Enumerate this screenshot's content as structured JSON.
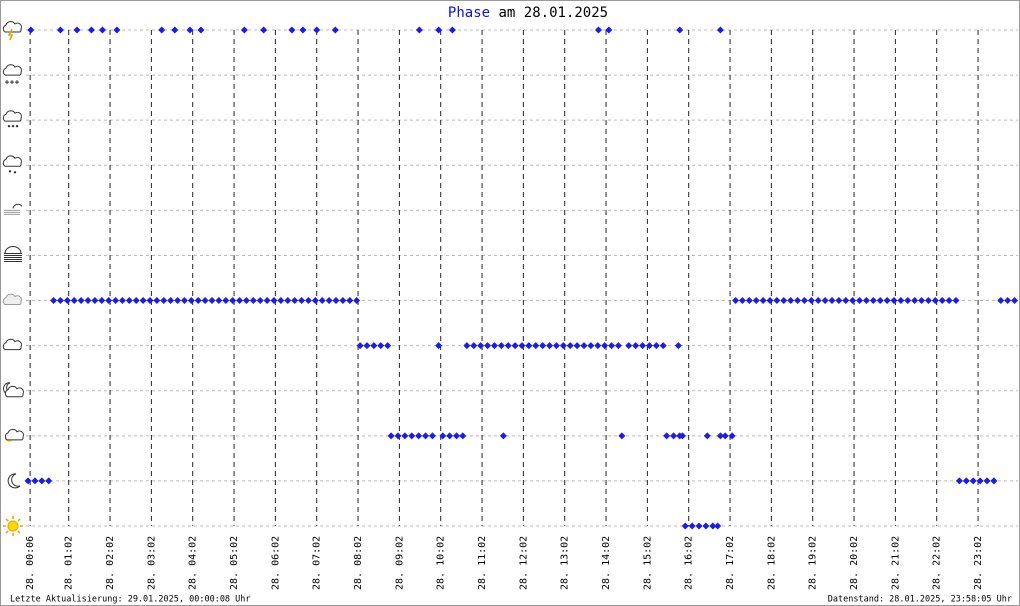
{
  "chart_data": {
    "type": "scatter",
    "title_highlight": "Phase",
    "title": "am 28.01.2025",
    "footer_left": "Letzte Aktualisierung: 29.01.2025, 00:00:08 Uhr",
    "footer_right": "Datenstand: 28.01.2025, 23:58:05 Uhr",
    "color": "#1c1ce8",
    "grid": true,
    "xlim": [
      0,
      1440
    ],
    "ylim": [
      0,
      11
    ],
    "yticks": [
      0,
      1,
      2,
      3,
      4,
      5,
      6,
      7,
      8,
      9,
      10,
      11
    ],
    "xticks": [
      {
        "value": 6,
        "label": "28. 00:06"
      },
      {
        "value": 62,
        "label": "28. 01:02"
      },
      {
        "value": 122,
        "label": "28. 02:02"
      },
      {
        "value": 182,
        "label": "28. 03:02"
      },
      {
        "value": 242,
        "label": "28. 04:02"
      },
      {
        "value": 302,
        "label": "28. 05:02"
      },
      {
        "value": 362,
        "label": "28. 06:02"
      },
      {
        "value": 422,
        "label": "28. 07:02"
      },
      {
        "value": 482,
        "label": "28. 08:02"
      },
      {
        "value": 542,
        "label": "28. 09:02"
      },
      {
        "value": 602,
        "label": "28. 10:02"
      },
      {
        "value": 662,
        "label": "28. 11:02"
      },
      {
        "value": 722,
        "label": "28. 12:02"
      },
      {
        "value": 782,
        "label": "28. 13:02"
      },
      {
        "value": 842,
        "label": "28. 14:02"
      },
      {
        "value": 902,
        "label": "28. 15:02"
      },
      {
        "value": 962,
        "label": "28. 16:02"
      },
      {
        "value": 1022,
        "label": "28. 17:02"
      },
      {
        "value": 1082,
        "label": "28. 18:02"
      },
      {
        "value": 1142,
        "label": "28. 19:02"
      },
      {
        "value": 1202,
        "label": "28. 20:02"
      },
      {
        "value": 1262,
        "label": "28. 21:02"
      },
      {
        "value": 1322,
        "label": "28. 22:02"
      },
      {
        "value": 1382,
        "label": "28. 23:02"
      }
    ],
    "x": [
      3,
      13,
      23,
      33,
      40,
      50,
      60,
      70,
      80,
      90,
      100,
      110,
      120,
      130,
      140,
      150,
      160,
      170,
      180,
      190,
      200,
      210,
      220,
      230,
      240,
      250,
      260,
      270,
      280,
      290,
      300,
      310,
      320,
      330,
      340,
      350,
      360,
      370,
      380,
      390,
      400,
      410,
      420,
      430,
      440,
      450,
      460,
      470,
      480,
      485,
      495,
      505,
      515,
      525,
      530,
      540,
      550,
      560,
      570,
      580,
      590,
      599,
      605,
      615,
      625,
      634,
      640,
      650,
      660,
      670,
      680,
      690,
      693,
      700,
      710,
      720,
      730,
      740,
      750,
      760,
      770,
      780,
      790,
      800,
      810,
      820,
      830,
      840,
      850,
      860,
      865,
      875,
      885,
      895,
      905,
      915,
      925,
      930,
      940,
      947,
      949,
      953,
      957,
      967,
      977,
      987,
      989,
      997,
      1004,
      1008,
      1015,
      1025,
      1030,
      1040,
      1050,
      1060,
      1070,
      1080,
      1090,
      1100,
      1110,
      1120,
      1130,
      1140,
      1150,
      1160,
      1170,
      1180,
      1190,
      1200,
      1210,
      1220,
      1230,
      1240,
      1250,
      1260,
      1270,
      1280,
      1290,
      1300,
      1310,
      1320,
      1330,
      1340,
      1350,
      1355,
      1365,
      1375,
      1385,
      1395,
      1405,
      1415,
      1425,
      1435,
      7,
      50,
      74,
      95,
      111,
      132,
      197,
      216,
      238,
      254,
      317,
      345,
      386,
      402,
      422,
      449,
      571,
      599,
      619,
      831,
      846,
      949,
      1008
    ],
    "values": [
      1,
      1,
      1,
      1,
      5,
      5,
      5,
      5,
      5,
      5,
      5,
      5,
      5,
      5,
      5,
      5,
      5,
      5,
      5,
      5,
      5,
      5,
      5,
      5,
      5,
      5,
      5,
      5,
      5,
      5,
      5,
      5,
      5,
      5,
      5,
      5,
      5,
      5,
      5,
      5,
      5,
      5,
      5,
      5,
      5,
      5,
      5,
      5,
      5,
      4,
      4,
      4,
      4,
      4,
      2,
      2,
      2,
      2,
      2,
      2,
      2,
      4,
      2,
      2,
      2,
      2,
      4,
      4,
      4,
      4,
      4,
      4,
      2,
      4,
      4,
      4,
      4,
      4,
      4,
      4,
      4,
      4,
      4,
      4,
      4,
      4,
      4,
      4,
      4,
      4,
      2,
      4,
      4,
      4,
      4,
      4,
      4,
      2,
      2,
      4,
      2,
      2,
      0,
      0,
      0,
      0,
      2,
      0,
      0,
      2,
      2,
      2,
      5,
      5,
      5,
      5,
      5,
      5,
      5,
      5,
      5,
      5,
      5,
      5,
      5,
      5,
      5,
      5,
      5,
      5,
      5,
      5,
      5,
      5,
      5,
      5,
      5,
      5,
      5,
      5,
      5,
      5,
      5,
      5,
      5,
      1,
      1,
      1,
      1,
      1,
      1,
      5,
      5,
      5,
      11,
      11,
      11,
      11,
      11,
      11,
      11,
      11,
      11,
      11,
      11,
      11,
      11,
      11,
      11,
      11,
      11,
      11,
      11,
      11,
      11,
      11,
      11
    ]
  }
}
